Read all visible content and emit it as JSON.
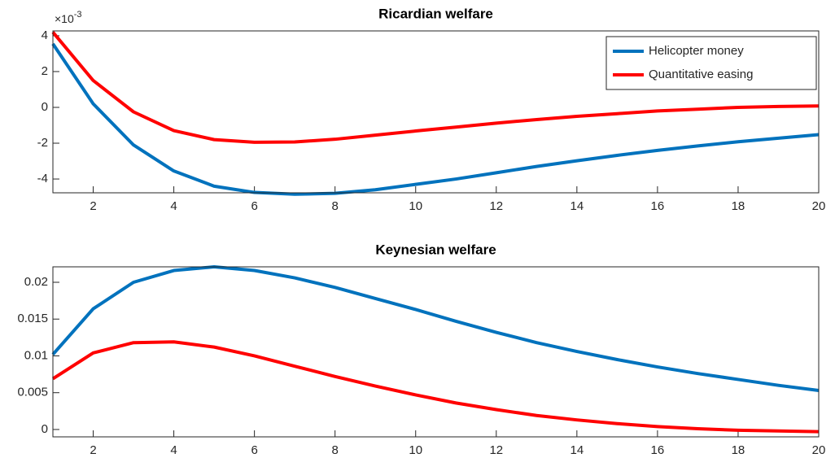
{
  "chart_data": [
    {
      "type": "line",
      "title": "Ricardian welfare",
      "y_multiplier": {
        "base": "×10",
        "exponent": "-3"
      },
      "x": [
        1,
        2,
        3,
        4,
        5,
        6,
        7,
        8,
        9,
        10,
        11,
        12,
        13,
        14,
        15,
        16,
        17,
        18,
        19,
        20
      ],
      "series": [
        {
          "name": "Helicopter money",
          "color": "#0072bd",
          "values": [
            3.55,
            0.2,
            -2.1,
            -3.55,
            -4.4,
            -4.75,
            -4.85,
            -4.8,
            -4.6,
            -4.3,
            -4.0,
            -3.65,
            -3.3,
            -2.98,
            -2.68,
            -2.4,
            -2.15,
            -1.92,
            -1.72,
            -1.52
          ]
        },
        {
          "name": "Quantitative easing",
          "color": "#ff0000",
          "values": [
            4.2,
            1.5,
            -0.25,
            -1.3,
            -1.8,
            -1.95,
            -1.93,
            -1.78,
            -1.55,
            -1.32,
            -1.1,
            -0.88,
            -0.68,
            -0.5,
            -0.35,
            -0.2,
            -0.1,
            0.0,
            0.05,
            0.08
          ]
        }
      ],
      "xlim": [
        1,
        20
      ],
      "xticks": [
        2,
        4,
        6,
        8,
        10,
        12,
        14,
        16,
        18,
        20
      ],
      "ylim": [
        -4.77,
        4.27
      ],
      "yticks": [
        -4,
        -2,
        0,
        2,
        4
      ],
      "legend": "top-right"
    },
    {
      "type": "line",
      "title": "Keynesian welfare",
      "x": [
        1,
        2,
        3,
        4,
        5,
        6,
        7,
        8,
        9,
        10,
        11,
        12,
        13,
        14,
        15,
        16,
        17,
        18,
        19,
        20
      ],
      "series": [
        {
          "name": "Helicopter money",
          "color": "#0072bd",
          "values": [
            0.0102,
            0.0164,
            0.02,
            0.0216,
            0.0221,
            0.0216,
            0.0206,
            0.0193,
            0.0178,
            0.0163,
            0.0147,
            0.0132,
            0.0118,
            0.0106,
            0.0095,
            0.0085,
            0.0076,
            0.0068,
            0.006,
            0.0053
          ]
        },
        {
          "name": "Quantitative easing",
          "color": "#ff0000",
          "values": [
            0.0069,
            0.0104,
            0.0118,
            0.0119,
            0.0112,
            0.01,
            0.0086,
            0.0072,
            0.0059,
            0.0047,
            0.0036,
            0.0027,
            0.0019,
            0.0013,
            0.0008,
            0.0004,
            0.0001,
            -0.0001,
            -0.0002,
            -0.0003
          ]
        }
      ],
      "xlim": [
        1,
        20
      ],
      "xticks": [
        2,
        4,
        6,
        8,
        10,
        12,
        14,
        16,
        18,
        20
      ],
      "ylim": [
        -0.001,
        0.0221
      ],
      "yticks": [
        0,
        0.005,
        0.01,
        0.015,
        0.02
      ]
    }
  ]
}
